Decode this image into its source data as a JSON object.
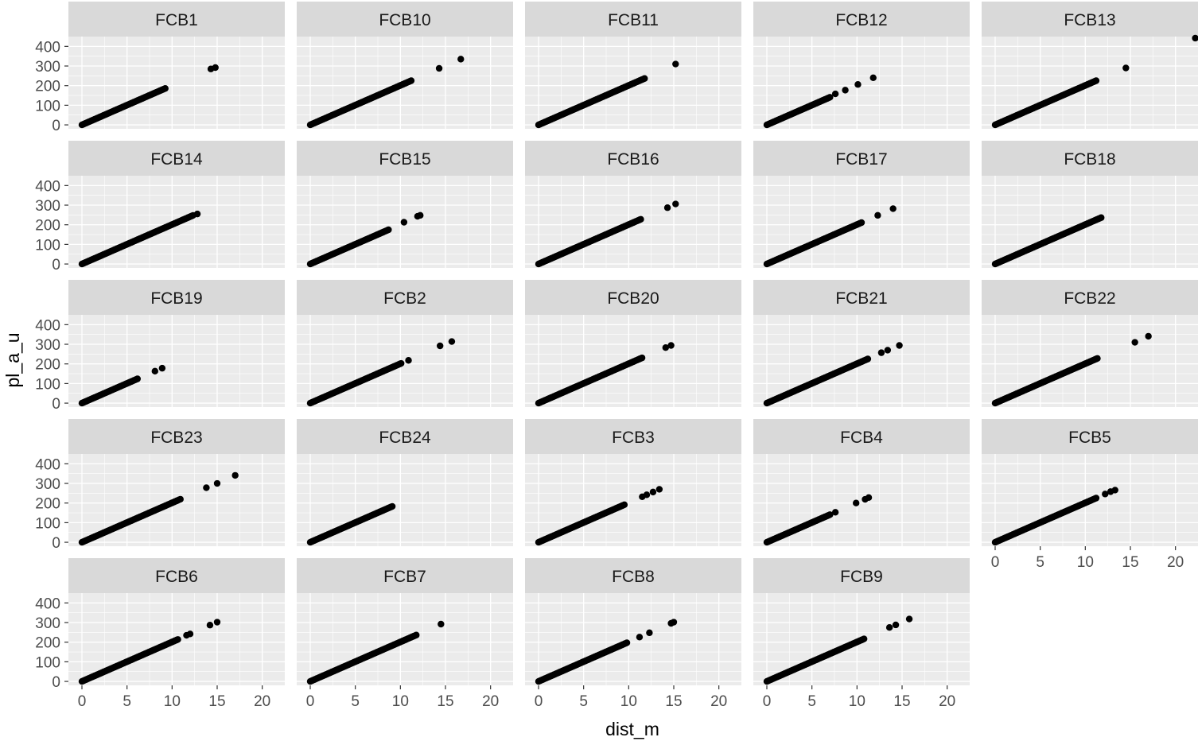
{
  "figure": {
    "xlabel": "dist_m",
    "ylabel": "pl_a_u",
    "colors": {
      "panel_bg": "#EBEBEB",
      "strip_bg": "#D9D9D9",
      "grid_major": "#FFFFFF",
      "points": "#000000",
      "tick_text": "#4D4D4D",
      "title_text": "#1A1A1A"
    }
  },
  "chart_data": {
    "type": "scatter",
    "facet_layout": {
      "rows": 5,
      "cols": 5
    },
    "xlim": [
      -1.5,
      22.5
    ],
    "ylim": [
      -20,
      450
    ],
    "x_ticks": [
      0,
      5,
      10,
      15,
      20
    ],
    "y_ticks": [
      0,
      100,
      200,
      300,
      400
    ],
    "grid": true,
    "legend": "none",
    "panels": [
      {
        "name": "FCB1",
        "dense_max": 9.3,
        "outliers": [
          [
            14.3,
            285
          ],
          [
            14.8,
            292
          ]
        ]
      },
      {
        "name": "FCB10",
        "dense_max": 11.2,
        "outliers": [
          [
            14.3,
            288
          ],
          [
            16.7,
            335
          ]
        ]
      },
      {
        "name": "FCB11",
        "dense_max": 11.8,
        "outliers": [
          [
            15.2,
            310
          ]
        ]
      },
      {
        "name": "FCB12",
        "dense_max": 7.0,
        "outliers": [
          [
            7.6,
            158
          ],
          [
            8.7,
            177
          ],
          [
            10.1,
            206
          ],
          [
            11.8,
            240
          ]
        ]
      },
      {
        "name": "FCB13",
        "dense_max": 11.3,
        "outliers": [
          [
            14.5,
            290
          ],
          [
            22.2,
            442
          ]
        ]
      },
      {
        "name": "FCB14",
        "dense_max": 12.4,
        "outliers": [
          [
            12.8,
            255
          ]
        ]
      },
      {
        "name": "FCB15",
        "dense_max": 8.7,
        "outliers": [
          [
            10.4,
            213
          ],
          [
            11.9,
            243
          ],
          [
            12.2,
            248
          ]
        ]
      },
      {
        "name": "FCB16",
        "dense_max": 11.4,
        "outliers": [
          [
            14.3,
            287
          ],
          [
            15.2,
            306
          ]
        ]
      },
      {
        "name": "FCB17",
        "dense_max": 10.6,
        "outliers": [
          [
            12.3,
            248
          ],
          [
            14.0,
            282
          ]
        ]
      },
      {
        "name": "FCB18",
        "dense_max": 11.8,
        "outliers": []
      },
      {
        "name": "FCB19",
        "dense_max": 6.2,
        "outliers": [
          [
            8.1,
            163
          ],
          [
            8.9,
            178
          ]
        ]
      },
      {
        "name": "FCB2",
        "dense_max": 10.1,
        "outliers": [
          [
            10.9,
            218
          ],
          [
            14.4,
            292
          ],
          [
            15.7,
            314
          ]
        ]
      },
      {
        "name": "FCB20",
        "dense_max": 11.6,
        "outliers": [
          [
            14.1,
            283
          ],
          [
            14.7,
            294
          ]
        ]
      },
      {
        "name": "FCB21",
        "dense_max": 11.3,
        "outliers": [
          [
            12.7,
            257
          ],
          [
            13.4,
            270
          ],
          [
            14.7,
            294
          ]
        ]
      },
      {
        "name": "FCB22",
        "dense_max": 11.4,
        "outliers": [
          [
            15.5,
            310
          ],
          [
            17.0,
            341
          ]
        ]
      },
      {
        "name": "FCB23",
        "dense_max": 11.0,
        "outliers": [
          [
            13.8,
            278
          ],
          [
            15.0,
            300
          ],
          [
            17.0,
            341
          ]
        ]
      },
      {
        "name": "FCB24",
        "dense_max": 9.2,
        "outliers": []
      },
      {
        "name": "FCB3",
        "dense_max": 9.6,
        "outliers": [
          [
            11.5,
            232
          ],
          [
            12.0,
            242
          ],
          [
            12.7,
            256
          ],
          [
            13.4,
            270
          ]
        ]
      },
      {
        "name": "FCB4",
        "dense_max": 7.0,
        "outliers": [
          [
            7.6,
            153
          ],
          [
            9.9,
            200
          ],
          [
            10.9,
            219
          ],
          [
            11.3,
            228
          ]
        ]
      },
      {
        "name": "FCB5",
        "dense_max": 11.3,
        "outliers": [
          [
            12.2,
            246
          ],
          [
            12.8,
            258
          ],
          [
            13.3,
            266
          ]
        ]
      },
      {
        "name": "FCB6",
        "dense_max": 10.7,
        "outliers": [
          [
            11.6,
            235
          ],
          [
            12.0,
            242
          ],
          [
            14.2,
            287
          ],
          [
            15.0,
            302
          ]
        ]
      },
      {
        "name": "FCB7",
        "dense_max": 11.8,
        "outliers": [
          [
            14.5,
            292
          ]
        ]
      },
      {
        "name": "FCB8",
        "dense_max": 9.8,
        "outliers": [
          [
            11.2,
            226
          ],
          [
            12.3,
            248
          ],
          [
            14.7,
            296
          ],
          [
            15.0,
            302
          ]
        ]
      },
      {
        "name": "FCB9",
        "dense_max": 10.8,
        "outliers": [
          [
            13.6,
            275
          ],
          [
            14.3,
            288
          ],
          [
            15.8,
            318
          ]
        ]
      }
    ],
    "series_model": {
      "slope": 20.1,
      "intercept": 0,
      "step": 0.14
    }
  }
}
